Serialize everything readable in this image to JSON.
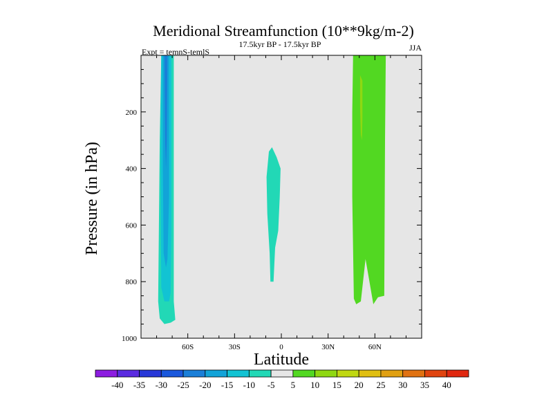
{
  "chart_data": {
    "type": "heatmap",
    "title": "Meridional Streamfunction (10**9kg/m-2)",
    "subtitle_left": "Expt = temnS-temlS",
    "subtitle_center": "17.5kyr BP - 17.5kyr BP",
    "subtitle_right": "JJA",
    "xlabel": "Latitude",
    "ylabel": "Pressure (in hPa)",
    "xlim": [
      -90,
      90
    ],
    "ylim": [
      0,
      1000
    ],
    "y_inverted": true,
    "x_ticks": [
      {
        "value": -60,
        "label": "60S"
      },
      {
        "value": -30,
        "label": "30S"
      },
      {
        "value": 0,
        "label": "0"
      },
      {
        "value": 30,
        "label": "30N"
      },
      {
        "value": 60,
        "label": "60N"
      }
    ],
    "y_ticks": [
      {
        "value": 200,
        "label": "200"
      },
      {
        "value": 400,
        "label": "400"
      },
      {
        "value": 600,
        "label": "600"
      },
      {
        "value": 800,
        "label": "800"
      },
      {
        "value": 1000,
        "label": "1000"
      }
    ],
    "background_color": "#e6e6e6",
    "colorbar": {
      "boundaries": [
        "-40",
        "-35",
        "-30",
        "-25",
        "-20",
        "-15",
        "-10",
        "-5",
        "5",
        "10",
        "15",
        "20",
        "25",
        "30",
        "35",
        "40"
      ],
      "colors": [
        "#8c1ce0",
        "#5a2be0",
        "#2838d8",
        "#1a58dc",
        "#1a7fd8",
        "#12a3d8",
        "#12c3d3",
        "#22d8b6",
        "#e6e6e6",
        "#52d822",
        "#8fd812",
        "#c0d812",
        "#e0bf12",
        "#e0a012",
        "#e07212",
        "#e0440f",
        "#e02810"
      ]
    },
    "contour_regions": [
      {
        "class": "-10 to -5",
        "color": "#22d8b6",
        "polygon": [
          [
            -77,
            0
          ],
          [
            -69,
            0
          ],
          [
            -69,
            870
          ],
          [
            -68,
            935
          ],
          [
            -71,
            945
          ],
          [
            -75,
            950
          ],
          [
            -78,
            930
          ],
          [
            -79,
            870
          ],
          [
            -78,
            300
          ]
        ]
      },
      {
        "class": "-15 to -10",
        "color": "#12c3d3",
        "polygon": [
          [
            -77,
            0
          ],
          [
            -70.5,
            0
          ],
          [
            -70.5,
            600
          ],
          [
            -71,
            840
          ],
          [
            -72,
            870
          ],
          [
            -75,
            870
          ],
          [
            -77,
            820
          ],
          [
            -77.5,
            400
          ]
        ]
      },
      {
        "class": "-20 to -15",
        "color": "#12a3d8",
        "polygon": [
          [
            -76,
            0
          ],
          [
            -72,
            0
          ],
          [
            -72,
            500
          ],
          [
            -73,
            720
          ],
          [
            -74,
            750
          ],
          [
            -75.5,
            700
          ],
          [
            -76,
            400
          ]
        ]
      },
      {
        "class": "-25 to -20",
        "color": "#1a7fd8",
        "polygon": [
          [
            -75,
            0
          ],
          [
            -73,
            0
          ],
          [
            -73.5,
            300
          ],
          [
            -74,
            400
          ],
          [
            -74.5,
            300
          ]
        ]
      },
      {
        "class": "-10 to -5",
        "color": "#22d8b6",
        "polygon": [
          [
            -8,
            340
          ],
          [
            -6,
            325
          ],
          [
            -3,
            360
          ],
          [
            -0.5,
            400
          ],
          [
            -1,
            500
          ],
          [
            -2,
            620
          ],
          [
            -4,
            680
          ],
          [
            -5,
            800
          ],
          [
            -7,
            800
          ],
          [
            -7.5,
            700
          ],
          [
            -9,
            560
          ],
          [
            -9.5,
            430
          ]
        ]
      },
      {
        "class": "5 to 10",
        "color": "#52d822",
        "polygon": [
          [
            46,
            0
          ],
          [
            67,
            0
          ],
          [
            66.5,
            300
          ],
          [
            66,
            850
          ],
          [
            62,
            855
          ],
          [
            59,
            880
          ],
          [
            54,
            720
          ],
          [
            51,
            870
          ],
          [
            48,
            880
          ],
          [
            46.5,
            860
          ],
          [
            45.5,
            500
          ],
          [
            45.5,
            200
          ]
        ]
      },
      {
        "class": "10 to 15",
        "color": "#8fd812",
        "polygon": [
          [
            50.5,
            70
          ],
          [
            52,
            90
          ],
          [
            52,
            220
          ],
          [
            51.7,
            300
          ],
          [
            51,
            280
          ],
          [
            50.5,
            180
          ]
        ]
      }
    ]
  }
}
